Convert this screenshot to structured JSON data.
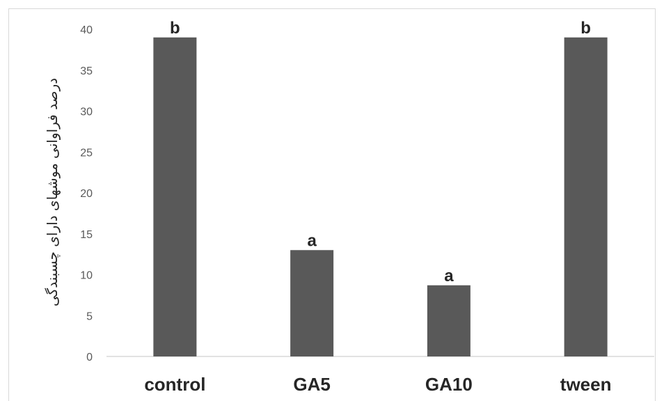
{
  "chart_data": {
    "type": "bar",
    "categories": [
      "control",
      "GA5",
      "GA10",
      "tween"
    ],
    "values": [
      39,
      13,
      8.7,
      39
    ],
    "bar_labels": [
      "b",
      "a",
      "a",
      "b"
    ],
    "ylabel": "درصد فراوانی موشهای دارای چسبندگی",
    "ylim": [
      0,
      40
    ],
    "yticks": [
      0,
      5,
      10,
      15,
      20,
      25,
      30,
      35,
      40
    ],
    "bar_color": "#595959",
    "grid": false
  }
}
